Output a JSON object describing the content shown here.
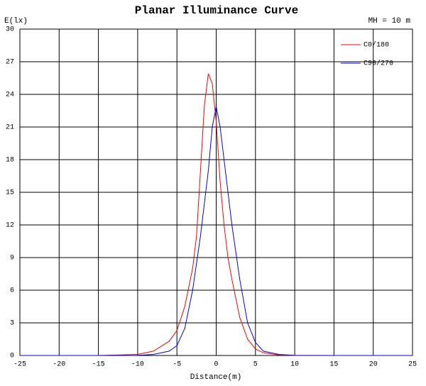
{
  "chart_data": {
    "type": "line",
    "title": "Planar Illuminance Curve",
    "annotation": "MH = 10 m",
    "y_label": "E(lx)",
    "x_label": "Distance(m)",
    "x": [
      -25,
      -20,
      -15,
      -10,
      -8,
      -6,
      -5,
      -4,
      -3,
      -2.5,
      -2,
      -1.5,
      -1,
      -0.5,
      0,
      0.5,
      1,
      1.5,
      2,
      3,
      4,
      5,
      6,
      8,
      10,
      15,
      20,
      25
    ],
    "series": [
      {
        "name": "C0/180",
        "color": "#ff0000",
        "values": [
          0,
          0,
          0,
          0.1,
          0.4,
          1.3,
          2.3,
          4.5,
          8,
          11,
          17,
          23,
          25.9,
          25,
          21.5,
          16,
          12,
          9,
          7,
          3.5,
          1.5,
          0.6,
          0.25,
          0.05,
          0,
          0,
          0,
          0
        ]
      },
      {
        "name": "C90/270",
        "color": "#0000ff",
        "values": [
          0,
          0,
          0,
          0.02,
          0.1,
          0.4,
          0.9,
          2.5,
          6,
          8.5,
          11,
          14,
          17,
          21,
          22.9,
          21,
          18,
          15,
          12,
          7,
          3,
          1.2,
          0.4,
          0.1,
          0.02,
          0,
          0,
          0
        ]
      }
    ],
    "xlim": [
      -25,
      25
    ],
    "xticks": [
      -25,
      -20,
      -15,
      -10,
      -5,
      0,
      5,
      10,
      15,
      20,
      25
    ],
    "ylim": [
      0,
      30
    ],
    "yticks": [
      0,
      3,
      6,
      9,
      12,
      15,
      18,
      21,
      24,
      27,
      30
    ],
    "grid": true,
    "legend": "upper right"
  }
}
